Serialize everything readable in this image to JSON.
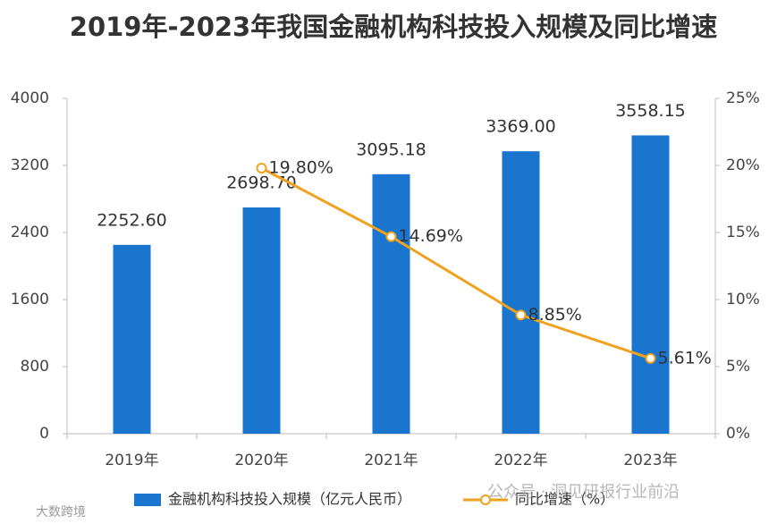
{
  "chart_data": {
    "type": "bar_line",
    "title": "2019年-2023年我国金融机构科技投入规模及同比增速",
    "categories": [
      "2019年",
      "2020年",
      "2021年",
      "2022年",
      "2023年"
    ],
    "series": [
      {
        "name": "金融机构科技投入规模（亿元人民币）",
        "type": "bar",
        "color": "#1a75cf",
        "values": [
          2252.6,
          2698.7,
          3095.18,
          3369.0,
          3558.15
        ],
        "value_labels": [
          "2252.60",
          "2698.70",
          "3095.18",
          "3369.00",
          "3558.15"
        ]
      },
      {
        "name": "同比增速（%）",
        "type": "line",
        "axis": "y2",
        "color": "#f0a21e",
        "values": [
          null,
          19.8,
          14.69,
          8.85,
          5.61
        ],
        "value_labels": [
          null,
          "19.80%",
          "14.69%",
          "8.85%",
          "5.61%"
        ]
      }
    ],
    "ylim": [
      0,
      4000
    ],
    "yticks": [
      0,
      800,
      1600,
      2400,
      3200,
      4000
    ],
    "y2lim": [
      0,
      25
    ],
    "y2ticks": [
      {
        "value": 0,
        "label": "0%"
      },
      {
        "value": 5,
        "label": "5%"
      },
      {
        "value": 10,
        "label": "10%"
      },
      {
        "value": 15,
        "label": "15%"
      },
      {
        "value": 20,
        "label": "20%"
      },
      {
        "value": 25,
        "label": "25%"
      }
    ],
    "legend": "bottom",
    "watermarks": [
      "大数跨境",
      "公众号 · 洞见研报行业前沿"
    ]
  }
}
